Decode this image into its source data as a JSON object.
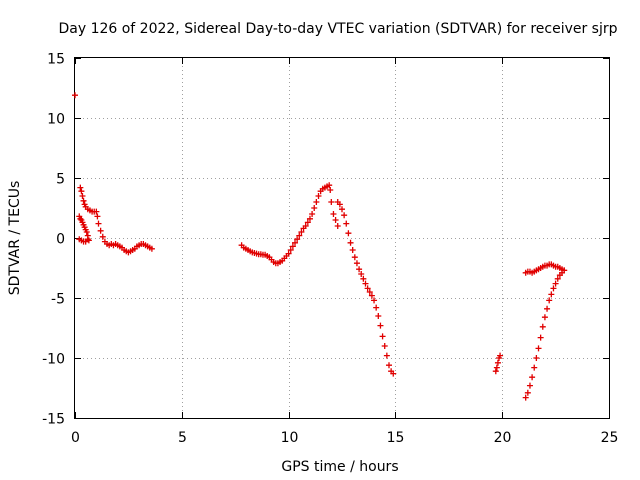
{
  "chart_data": {
    "type": "scatter",
    "title": "Day 126 of 2022, Sidereal Day-to-day VTEC variation (SDTVAR) for receiver sjrp",
    "xlabel": "GPS time / hours",
    "ylabel": "SDTVAR / TECUs",
    "xlim": [
      0,
      25
    ],
    "ylim": [
      -15,
      15
    ],
    "xticks": [
      0,
      5,
      10,
      15,
      20,
      25
    ],
    "yticks": [
      -15,
      -10,
      -5,
      0,
      5,
      10,
      15
    ],
    "grid": true,
    "marker": "plus",
    "color": "#e00000",
    "series": [
      {
        "name": "initial",
        "points": [
          [
            0.0,
            11.9
          ]
        ]
      },
      {
        "name": "early-upper",
        "points": [
          [
            0.25,
            4.2
          ],
          [
            0.3,
            3.9
          ],
          [
            0.35,
            3.5
          ],
          [
            0.4,
            3.1
          ],
          [
            0.45,
            2.8
          ],
          [
            0.5,
            2.6
          ],
          [
            0.6,
            2.4
          ],
          [
            0.7,
            2.3
          ],
          [
            0.8,
            2.2
          ],
          [
            0.9,
            2.2
          ],
          [
            1.0,
            2.2
          ],
          [
            1.05,
            1.8
          ],
          [
            1.1,
            1.2
          ],
          [
            1.2,
            0.6
          ],
          [
            1.3,
            0.1
          ],
          [
            1.4,
            -0.3
          ],
          [
            1.5,
            -0.5
          ],
          [
            1.6,
            -0.6
          ],
          [
            1.7,
            -0.5
          ],
          [
            1.8,
            -0.6
          ],
          [
            1.9,
            -0.5
          ],
          [
            2.0,
            -0.6
          ],
          [
            2.1,
            -0.7
          ],
          [
            2.2,
            -0.8
          ],
          [
            2.3,
            -1.0
          ],
          [
            2.4,
            -1.1
          ],
          [
            2.5,
            -1.2
          ],
          [
            2.6,
            -1.1
          ],
          [
            2.7,
            -1.0
          ],
          [
            2.8,
            -0.9
          ],
          [
            2.9,
            -0.7
          ],
          [
            3.0,
            -0.6
          ],
          [
            3.1,
            -0.5
          ],
          [
            3.2,
            -0.5
          ],
          [
            3.3,
            -0.6
          ],
          [
            3.4,
            -0.7
          ],
          [
            3.5,
            -0.8
          ],
          [
            3.6,
            -0.9
          ]
        ]
      },
      {
        "name": "early-lower",
        "points": [
          [
            0.2,
            1.8
          ],
          [
            0.25,
            1.6
          ],
          [
            0.3,
            1.5
          ],
          [
            0.35,
            1.3
          ],
          [
            0.4,
            1.1
          ],
          [
            0.45,
            0.9
          ],
          [
            0.5,
            0.7
          ],
          [
            0.55,
            0.5
          ],
          [
            0.6,
            0.2
          ],
          [
            0.2,
            -0.1
          ],
          [
            0.3,
            -0.2
          ],
          [
            0.4,
            -0.3
          ],
          [
            0.5,
            -0.3
          ],
          [
            0.6,
            -0.1
          ],
          [
            0.65,
            -0.2
          ]
        ]
      },
      {
        "name": "midday",
        "points": [
          [
            7.8,
            -0.6
          ],
          [
            7.9,
            -0.8
          ],
          [
            8.0,
            -0.9
          ],
          [
            8.1,
            -1.0
          ],
          [
            8.2,
            -1.1
          ],
          [
            8.3,
            -1.2
          ],
          [
            8.4,
            -1.25
          ],
          [
            8.5,
            -1.3
          ],
          [
            8.6,
            -1.35
          ],
          [
            8.7,
            -1.35
          ],
          [
            8.8,
            -1.4
          ],
          [
            8.9,
            -1.4
          ],
          [
            9.0,
            -1.5
          ],
          [
            9.1,
            -1.6
          ],
          [
            9.2,
            -1.8
          ],
          [
            9.3,
            -2.0
          ],
          [
            9.4,
            -2.1
          ],
          [
            9.5,
            -2.1
          ],
          [
            9.6,
            -2.0
          ],
          [
            9.7,
            -1.9
          ],
          [
            9.8,
            -1.7
          ],
          [
            9.9,
            -1.5
          ],
          [
            10.0,
            -1.3
          ],
          [
            10.1,
            -1.0
          ],
          [
            10.2,
            -0.7
          ],
          [
            10.3,
            -0.4
          ],
          [
            10.4,
            -0.1
          ],
          [
            10.5,
            0.2
          ],
          [
            10.6,
            0.5
          ],
          [
            10.7,
            0.8
          ],
          [
            10.8,
            1.0
          ],
          [
            10.9,
            1.3
          ],
          [
            11.0,
            1.6
          ],
          [
            11.1,
            2.0
          ],
          [
            11.2,
            2.5
          ],
          [
            11.3,
            3.0
          ],
          [
            11.4,
            3.5
          ],
          [
            11.5,
            3.9
          ],
          [
            11.6,
            4.1
          ],
          [
            11.7,
            4.2
          ],
          [
            11.8,
            4.3
          ],
          [
            11.9,
            4.4
          ],
          [
            11.95,
            4.0
          ],
          [
            12.0,
            3.0
          ],
          [
            12.1,
            2.0
          ],
          [
            12.2,
            1.5
          ],
          [
            12.3,
            1.0
          ]
        ]
      },
      {
        "name": "afternoon",
        "points": [
          [
            12.3,
            3.0
          ],
          [
            12.4,
            2.8
          ],
          [
            12.5,
            2.4
          ],
          [
            12.6,
            1.9
          ],
          [
            12.7,
            1.2
          ],
          [
            12.8,
            0.4
          ],
          [
            12.9,
            -0.4
          ],
          [
            13.0,
            -1.0
          ],
          [
            13.1,
            -1.6
          ],
          [
            13.2,
            -2.1
          ],
          [
            13.3,
            -2.6
          ],
          [
            13.4,
            -3.0
          ],
          [
            13.5,
            -3.4
          ],
          [
            13.6,
            -3.8
          ],
          [
            13.7,
            -4.2
          ],
          [
            13.8,
            -4.5
          ],
          [
            13.9,
            -4.8
          ],
          [
            14.0,
            -5.2
          ],
          [
            14.1,
            -5.8
          ],
          [
            14.2,
            -6.5
          ],
          [
            14.3,
            -7.3
          ],
          [
            14.4,
            -8.2
          ],
          [
            14.5,
            -9.0
          ],
          [
            14.6,
            -9.8
          ],
          [
            14.7,
            -10.6
          ],
          [
            14.8,
            -11.1
          ],
          [
            14.9,
            -11.3
          ]
        ]
      },
      {
        "name": "late-short",
        "points": [
          [
            19.7,
            -11.1
          ],
          [
            19.75,
            -10.8
          ],
          [
            19.8,
            -10.4
          ],
          [
            19.85,
            -10.0
          ],
          [
            19.9,
            -9.8
          ]
        ]
      },
      {
        "name": "late-rise",
        "points": [
          [
            21.1,
            -13.3
          ],
          [
            21.2,
            -12.9
          ],
          [
            21.3,
            -12.3
          ],
          [
            21.4,
            -11.6
          ],
          [
            21.5,
            -10.8
          ],
          [
            21.6,
            -10.0
          ],
          [
            21.7,
            -9.2
          ],
          [
            21.8,
            -8.3
          ],
          [
            21.9,
            -7.4
          ],
          [
            22.0,
            -6.6
          ],
          [
            22.1,
            -5.9
          ],
          [
            22.2,
            -5.2
          ],
          [
            22.3,
            -4.7
          ],
          [
            22.4,
            -4.2
          ],
          [
            22.5,
            -3.8
          ],
          [
            22.6,
            -3.4
          ],
          [
            22.7,
            -3.1
          ],
          [
            22.8,
            -2.9
          ],
          [
            22.9,
            -2.7
          ]
        ]
      },
      {
        "name": "late-flat",
        "points": [
          [
            21.1,
            -2.9
          ],
          [
            21.2,
            -2.8
          ],
          [
            21.3,
            -2.8
          ],
          [
            21.4,
            -2.9
          ],
          [
            21.5,
            -2.8
          ],
          [
            21.6,
            -2.7
          ],
          [
            21.7,
            -2.6
          ],
          [
            21.8,
            -2.5
          ],
          [
            21.9,
            -2.4
          ],
          [
            22.0,
            -2.3
          ],
          [
            22.1,
            -2.3
          ],
          [
            22.2,
            -2.2
          ],
          [
            22.3,
            -2.2
          ],
          [
            22.4,
            -2.3
          ],
          [
            22.5,
            -2.4
          ],
          [
            22.6,
            -2.4
          ],
          [
            22.7,
            -2.5
          ],
          [
            22.8,
            -2.6
          ],
          [
            22.9,
            -2.7
          ]
        ]
      }
    ]
  }
}
